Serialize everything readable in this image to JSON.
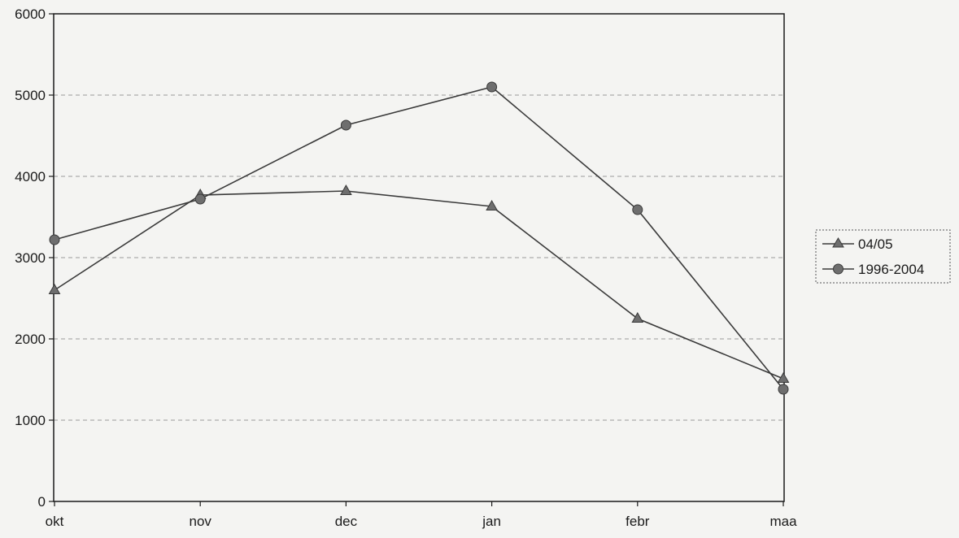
{
  "chart_data": {
    "type": "line",
    "title": "",
    "xlabel": "",
    "ylabel": "",
    "categories": [
      "okt",
      "nov",
      "dec",
      "jan",
      "febr",
      "maa"
    ],
    "ylim": [
      0,
      6000
    ],
    "yticks": [
      0,
      1000,
      2000,
      3000,
      4000,
      5000,
      6000
    ],
    "grid": "horizontal dashed",
    "legend_position": "right",
    "series": [
      {
        "name": "04/05",
        "marker": "triangle",
        "values": [
          2600,
          3770,
          3820,
          3630,
          2250,
          1510
        ]
      },
      {
        "name": "1996-2004",
        "marker": "circle",
        "values": [
          3220,
          3720,
          4630,
          5100,
          3590,
          1380
        ]
      }
    ]
  },
  "colors": {
    "line": "#3a3a3a",
    "marker": "#6e6e6e",
    "grid": "#9a9a9a",
    "background": "#f4f4f2"
  }
}
